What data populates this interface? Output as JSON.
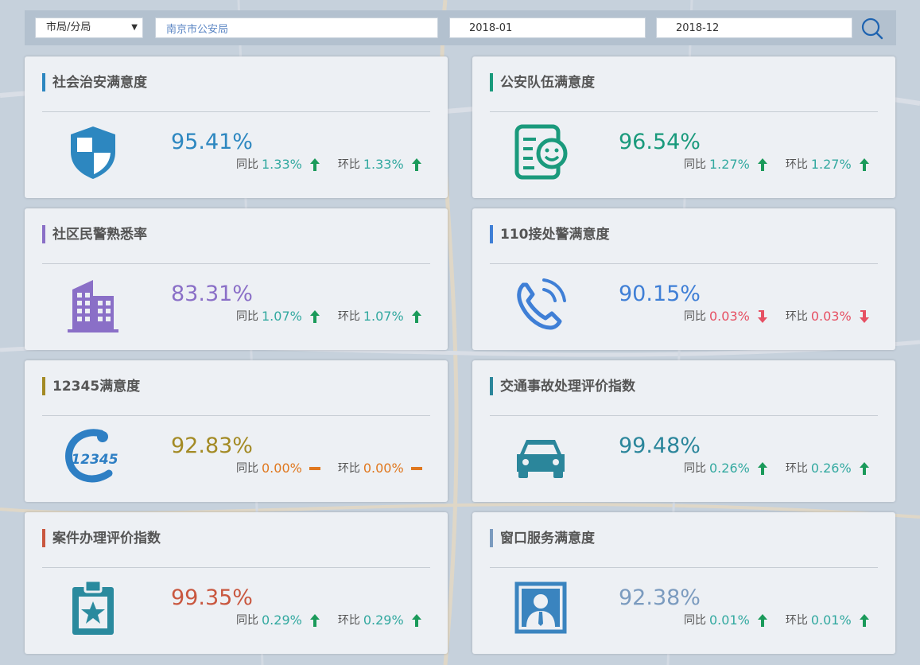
{
  "filters": {
    "level_select": "市局/分局",
    "unit_value": "南京市公安局",
    "date_start": "2018-01",
    "date_end": "2018-12"
  },
  "compare_labels": {
    "yoy": "同比",
    "mom": "环比"
  },
  "cards": [
    {
      "title": "社会治安满意度",
      "value": "95.41%",
      "yoy": "1.33%",
      "mom": "1.33%",
      "trend": "up",
      "icon": "shield-icon",
      "accent": "#2d87c0",
      "value_color": "#2d87c0",
      "delta_color": "#33a9a0"
    },
    {
      "title": "公安队伍满意度",
      "value": "96.54%",
      "yoy": "1.27%",
      "mom": "1.27%",
      "trend": "up",
      "icon": "smile-card-icon",
      "accent": "#1a9a7c",
      "value_color": "#1a9a7c",
      "delta_color": "#33a9a0"
    },
    {
      "title": "社区民警熟悉率",
      "value": "83.31%",
      "yoy": "1.07%",
      "mom": "1.07%",
      "trend": "up",
      "icon": "building-icon",
      "accent": "#8a6fc7",
      "value_color": "#8a6fc7",
      "delta_color": "#33a9a0"
    },
    {
      "title": "110接处警满意度",
      "value": "90.15%",
      "yoy": "0.03%",
      "mom": "0.03%",
      "trend": "down",
      "icon": "phone-icon",
      "accent": "#3f7fd6",
      "value_color": "#3f7fd6",
      "delta_color": "#e65063"
    },
    {
      "title": "12345满意度",
      "value": "92.83%",
      "yoy": "0.00%",
      "mom": "0.00%",
      "trend": "flat",
      "icon": "hotline-12345-icon",
      "accent": "#a38a24",
      "value_color": "#a38a24",
      "delta_color": "#e0781f"
    },
    {
      "title": "交通事故处理评价指数",
      "value": "99.48%",
      "yoy": "0.26%",
      "mom": "0.26%",
      "trend": "up",
      "icon": "car-icon",
      "accent": "#2b869b",
      "value_color": "#2b869b",
      "delta_color": "#33a9a0"
    },
    {
      "title": "案件办理评价指数",
      "value": "99.35%",
      "yoy": "0.29%",
      "mom": "0.29%",
      "trend": "up",
      "icon": "clipboard-star-icon",
      "accent": "#c9573f",
      "value_color": "#c9573f",
      "delta_color": "#33a9a0"
    },
    {
      "title": "窗口服务满意度",
      "value": "92.38%",
      "yoy": "0.01%",
      "mom": "0.01%",
      "trend": "up",
      "icon": "portrait-icon",
      "accent": "#7b9bbf",
      "value_color": "#7b9bbf",
      "delta_color": "#33a9a0"
    }
  ]
}
